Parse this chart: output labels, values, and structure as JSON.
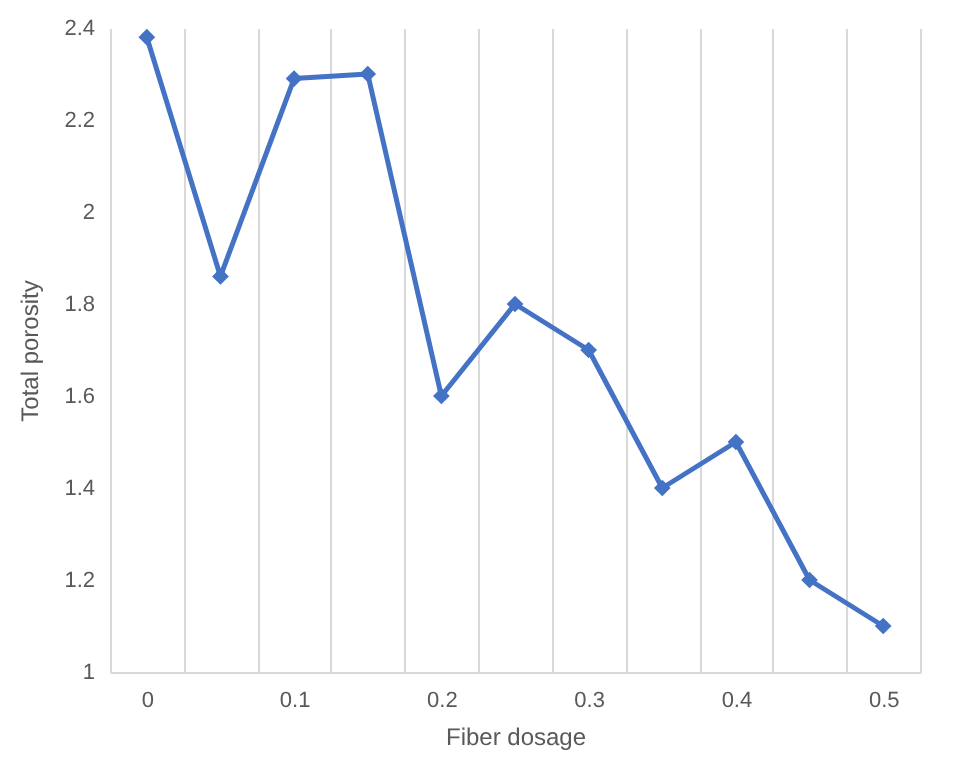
{
  "chart_data": {
    "type": "line",
    "xlabel": "Fiber dosage",
    "ylabel": "Total porosity",
    "categories": [
      "0",
      null,
      "0.1",
      null,
      "0.2",
      null,
      "0.3",
      null,
      "0.4",
      null,
      "0.5"
    ],
    "series": [
      {
        "color": "#4472c4",
        "values": [
          2.38,
          1.86,
          2.29,
          2.3,
          1.6,
          1.8,
          1.7,
          1.4,
          1.5,
          1.2,
          1.1
        ]
      }
    ],
    "ylim": [
      1,
      2.4
    ],
    "yticks": [
      1,
      1.2,
      1.4,
      1.6,
      1.8,
      2,
      2.2,
      2.4
    ],
    "grid": "x",
    "marker": "diamond",
    "line_style": "solid"
  }
}
